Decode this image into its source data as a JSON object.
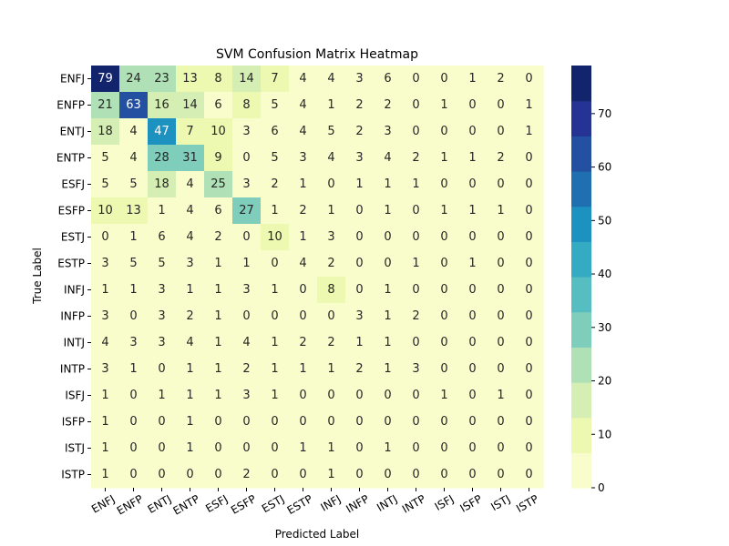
{
  "chart_data": {
    "type": "heatmap",
    "title": "SVM Confusion Matrix Heatmap",
    "xlabel": "Predicted Label",
    "ylabel": "True Label",
    "x_categories": [
      "ENFJ",
      "ENFP",
      "ENTJ",
      "ENTP",
      "ESFJ",
      "ESFP",
      "ESTJ",
      "ESTP",
      "INFJ",
      "INFP",
      "INTJ",
      "INTP",
      "ISFJ",
      "ISFP",
      "ISTJ",
      "ISTP"
    ],
    "y_categories": [
      "ENFJ",
      "ENFP",
      "ENTJ",
      "ENTP",
      "ESFJ",
      "ESFP",
      "ESTJ",
      "ESTP",
      "INFJ",
      "INFP",
      "INTJ",
      "INTP",
      "ISFJ",
      "ISFP",
      "ISTJ",
      "ISTP"
    ],
    "matrix": [
      [
        79,
        24,
        23,
        13,
        8,
        14,
        7,
        4,
        4,
        3,
        6,
        0,
        0,
        1,
        2,
        0
      ],
      [
        21,
        63,
        16,
        14,
        6,
        8,
        5,
        4,
        1,
        2,
        2,
        0,
        1,
        0,
        0,
        1
      ],
      [
        18,
        4,
        47,
        7,
        10,
        3,
        6,
        4,
        5,
        2,
        3,
        0,
        0,
        0,
        0,
        1
      ],
      [
        5,
        4,
        28,
        31,
        9,
        0,
        5,
        3,
        4,
        3,
        4,
        2,
        1,
        1,
        2,
        0
      ],
      [
        5,
        5,
        18,
        4,
        25,
        3,
        2,
        1,
        0,
        1,
        1,
        1,
        0,
        0,
        0,
        0
      ],
      [
        10,
        13,
        1,
        4,
        6,
        27,
        1,
        2,
        1,
        0,
        1,
        0,
        1,
        1,
        1,
        0
      ],
      [
        0,
        1,
        6,
        4,
        2,
        0,
        10,
        1,
        3,
        0,
        0,
        0,
        0,
        0,
        0,
        0
      ],
      [
        3,
        5,
        5,
        3,
        1,
        1,
        0,
        4,
        2,
        0,
        0,
        1,
        0,
        1,
        0,
        0
      ],
      [
        1,
        1,
        3,
        1,
        1,
        3,
        1,
        0,
        8,
        0,
        1,
        0,
        0,
        0,
        0,
        0
      ],
      [
        3,
        0,
        3,
        2,
        1,
        0,
        0,
        0,
        0,
        3,
        1,
        2,
        0,
        0,
        0,
        0
      ],
      [
        4,
        3,
        3,
        4,
        1,
        4,
        1,
        2,
        2,
        1,
        1,
        0,
        0,
        0,
        0,
        0
      ],
      [
        3,
        1,
        0,
        1,
        1,
        2,
        1,
        1,
        1,
        2,
        1,
        3,
        0,
        0,
        0,
        0
      ],
      [
        1,
        0,
        1,
        1,
        1,
        3,
        1,
        0,
        0,
        0,
        0,
        0,
        1,
        0,
        1,
        0
      ],
      [
        1,
        0,
        0,
        1,
        0,
        0,
        0,
        0,
        0,
        0,
        0,
        0,
        0,
        0,
        0,
        0
      ],
      [
        1,
        0,
        0,
        1,
        0,
        0,
        0,
        1,
        1,
        0,
        1,
        0,
        0,
        0,
        0,
        0
      ],
      [
        1,
        0,
        0,
        0,
        0,
        2,
        0,
        0,
        1,
        0,
        0,
        0,
        0,
        0,
        0,
        0
      ]
    ],
    "colormap": "YlGnBu",
    "vmin": 0,
    "vmax": 79,
    "colorbar_ticks": [
      0,
      10,
      20,
      30,
      40,
      50,
      60,
      70
    ],
    "colorbar_steps": 12,
    "grid": false,
    "colors": {
      "colormap_stops": [
        "#ffffd9",
        "#edf8b1",
        "#c7e9b4",
        "#7fcdbb",
        "#41b6c4",
        "#1d91c0",
        "#225ea8",
        "#253494",
        "#081d58"
      ],
      "text_dark": "#262626",
      "text_light": "#ffffff",
      "axis": "#000000"
    }
  }
}
